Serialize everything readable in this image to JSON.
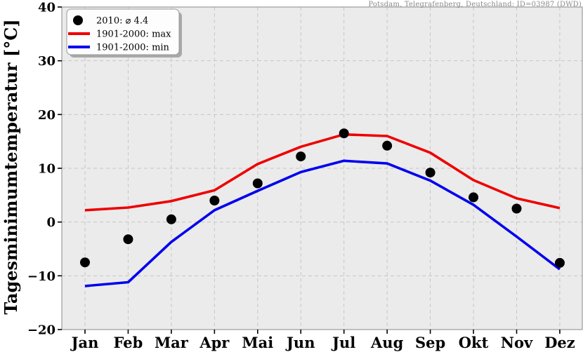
{
  "attribution": "Potsdam, Telegrafenberg, Deutschland: ID=03987 (DWD)",
  "legend": {
    "dot_label": "2010: ⌀ 4.4",
    "max_label": "1901-2000: max",
    "min_label": "1901-2000: min"
  },
  "colors": {
    "max_line": "#ee0000",
    "min_line": "#0000ee",
    "dot": "#000000",
    "plot_bg": "#ebebeb",
    "grid": "#c6c6c6",
    "frame": "#8a8a8a",
    "tick": "#000000",
    "attribution_text": "#8a8a8a",
    "legend_bg": "#fdfdfd",
    "legend_border": "#999999",
    "legend_shadow": "#a8a8a8"
  },
  "chart_data": {
    "type": "line",
    "title": "",
    "xlabel": "",
    "ylabel": "Tagesminimumtemperatur [°C]",
    "ylim": [
      -20,
      40
    ],
    "yticks": [
      -20,
      -10,
      0,
      10,
      20,
      30,
      40
    ],
    "ytick_labels": [
      "−20",
      "−10",
      "0",
      "10",
      "20",
      "30",
      "40"
    ],
    "categories": [
      "Jan",
      "Feb",
      "Mar",
      "Apr",
      "Mai",
      "Jun",
      "Jul",
      "Aug",
      "Sep",
      "Okt",
      "Nov",
      "Dez"
    ],
    "grid": true,
    "legend_position": "upper left",
    "series": [
      {
        "name": "2010: ⌀ 4.4",
        "style": "dots",
        "color": "#000000",
        "values": [
          -7.5,
          -3.2,
          0.5,
          4.0,
          7.2,
          12.2,
          16.5,
          14.2,
          9.2,
          4.6,
          2.5,
          -7.6
        ]
      },
      {
        "name": "1901-2000: max",
        "style": "line",
        "color": "#ee0000",
        "values": [
          2.2,
          2.7,
          3.9,
          5.9,
          10.8,
          14.0,
          16.3,
          16.0,
          12.9,
          7.8,
          4.4,
          2.6
        ]
      },
      {
        "name": "1901-2000: min",
        "style": "line",
        "color": "#0000ee",
        "values": [
          -11.9,
          -11.2,
          -3.7,
          2.2,
          5.8,
          9.3,
          11.4,
          10.9,
          7.7,
          3.2,
          -2.7,
          -8.8
        ]
      }
    ]
  }
}
